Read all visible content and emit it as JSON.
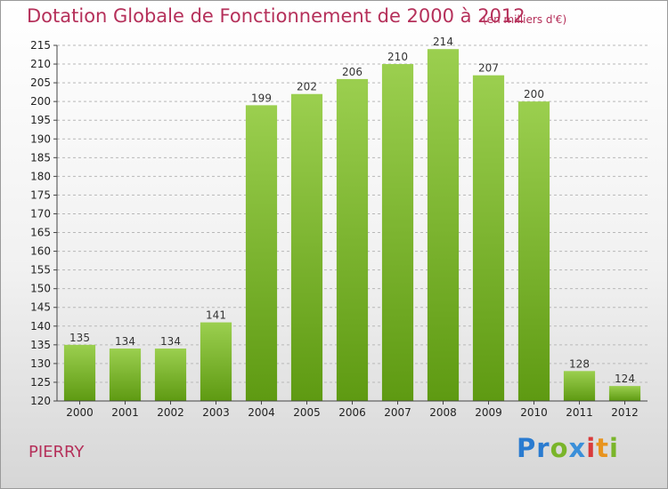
{
  "chart_data": {
    "type": "bar",
    "title": "Dotation Globale de Fonctionnement de 2000 à 2012",
    "subtitle": "(en milliers d'€)",
    "xlabel": "",
    "ylabel": "",
    "categories": [
      "2000",
      "2001",
      "2002",
      "2003",
      "2004",
      "2005",
      "2006",
      "2007",
      "2008",
      "2009",
      "2010",
      "2011",
      "2012"
    ],
    "values": [
      135,
      134,
      134,
      141,
      199,
      202,
      206,
      210,
      214,
      207,
      200,
      128,
      124
    ],
    "ylim": [
      120,
      215
    ],
    "yticks": [
      120,
      125,
      130,
      135,
      140,
      145,
      150,
      155,
      160,
      165,
      170,
      175,
      180,
      185,
      190,
      195,
      200,
      205,
      210,
      215
    ],
    "grid": true,
    "legend": "none",
    "colors": {
      "bar_top": "#9bcf4f",
      "bar_bottom": "#5e9a12",
      "title": "#b5305a",
      "grid": "#b8b8b8"
    }
  },
  "footer": {
    "commune": "PIERRY"
  },
  "logo": {
    "p1": "Pr",
    "o": "o",
    "x": "x",
    "i": "i",
    "t": "t",
    "i2": "i"
  }
}
